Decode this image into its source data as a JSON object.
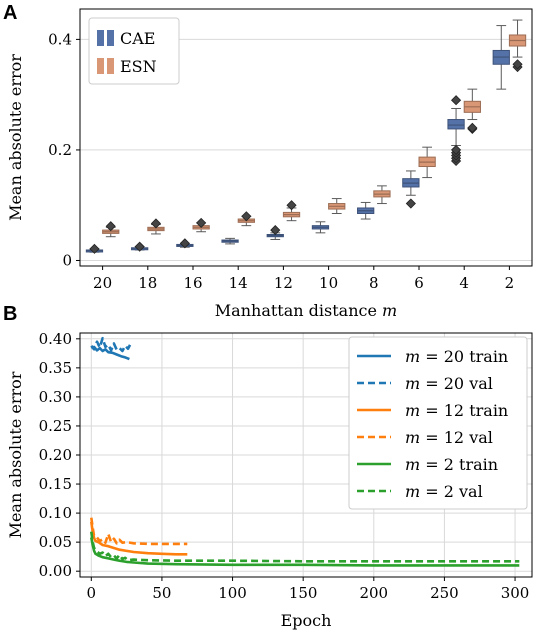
{
  "chart_data": [
    {
      "panel": "A",
      "type": "box",
      "categories": [
        "20",
        "18",
        "16",
        "14",
        "12",
        "10",
        "8",
        "6",
        "4",
        "2"
      ],
      "xlabel": "Manhattan distance ",
      "xlabel_italic": "m",
      "ylabel": "Mean absolute error",
      "ylim": [
        -0.01,
        0.455
      ],
      "yticks": [
        0,
        0.2,
        0.4
      ],
      "yticklabels": [
        "0",
        "0.2",
        "0.4"
      ],
      "grid": "horizontal",
      "legend_position": "top-left",
      "series": [
        {
          "name": "CAE",
          "color": "#5572a8",
          "boxes": [
            {
              "q1": 0.017,
              "median": 0.018,
              "q3": 0.019,
              "lo": 0.015,
              "hi": 0.021,
              "outliers": [
                0.021
              ]
            },
            {
              "q1": 0.021,
              "median": 0.022,
              "q3": 0.023,
              "lo": 0.019,
              "hi": 0.025,
              "outliers": [
                0.025
              ]
            },
            {
              "q1": 0.026,
              "median": 0.027,
              "q3": 0.029,
              "lo": 0.024,
              "hi": 0.031,
              "outliers": [
                0.031
              ]
            },
            {
              "q1": 0.033,
              "median": 0.035,
              "q3": 0.037,
              "lo": 0.03,
              "hi": 0.04,
              "outliers": []
            },
            {
              "q1": 0.043,
              "median": 0.045,
              "q3": 0.047,
              "lo": 0.038,
              "hi": 0.05,
              "outliers": [
                0.055
              ]
            },
            {
              "q1": 0.057,
              "median": 0.06,
              "q3": 0.063,
              "lo": 0.05,
              "hi": 0.07,
              "outliers": []
            },
            {
              "q1": 0.085,
              "median": 0.09,
              "q3": 0.095,
              "lo": 0.075,
              "hi": 0.105,
              "outliers": []
            },
            {
              "q1": 0.133,
              "median": 0.14,
              "q3": 0.148,
              "lo": 0.118,
              "hi": 0.162,
              "outliers": [
                0.103
              ]
            },
            {
              "q1": 0.238,
              "median": 0.245,
              "q3": 0.255,
              "lo": 0.208,
              "hi": 0.275,
              "outliers": [
                0.18,
                0.185,
                0.19,
                0.195,
                0.2,
                0.29
              ]
            },
            {
              "q1": 0.355,
              "median": 0.368,
              "q3": 0.38,
              "lo": 0.31,
              "hi": 0.425,
              "outliers": []
            }
          ]
        },
        {
          "name": "ESN",
          "color": "#d99775",
          "boxes": [
            {
              "q1": 0.049,
              "median": 0.052,
              "q3": 0.055,
              "lo": 0.043,
              "hi": 0.06,
              "outliers": [
                0.062
              ]
            },
            {
              "q1": 0.054,
              "median": 0.057,
              "q3": 0.06,
              "lo": 0.048,
              "hi": 0.065,
              "outliers": [
                0.067
              ]
            },
            {
              "q1": 0.057,
              "median": 0.06,
              "q3": 0.063,
              "lo": 0.052,
              "hi": 0.068,
              "outliers": [
                0.068
              ]
            },
            {
              "q1": 0.069,
              "median": 0.072,
              "q3": 0.075,
              "lo": 0.063,
              "hi": 0.08,
              "outliers": [
                0.08
              ]
            },
            {
              "q1": 0.079,
              "median": 0.083,
              "q3": 0.087,
              "lo": 0.072,
              "hi": 0.095,
              "outliers": [
                0.1
              ]
            },
            {
              "q1": 0.093,
              "median": 0.098,
              "q3": 0.103,
              "lo": 0.085,
              "hi": 0.112,
              "outliers": []
            },
            {
              "q1": 0.115,
              "median": 0.12,
              "q3": 0.126,
              "lo": 0.103,
              "hi": 0.135,
              "outliers": []
            },
            {
              "q1": 0.17,
              "median": 0.178,
              "q3": 0.187,
              "lo": 0.15,
              "hi": 0.205,
              "outliers": []
            },
            {
              "q1": 0.268,
              "median": 0.278,
              "q3": 0.288,
              "lo": 0.255,
              "hi": 0.31,
              "outliers": [
                0.238,
                0.24
              ]
            },
            {
              "q1": 0.388,
              "median": 0.398,
              "q3": 0.408,
              "lo": 0.368,
              "hi": 0.435,
              "outliers": [
                0.35,
                0.355
              ]
            }
          ]
        }
      ]
    },
    {
      "panel": "B",
      "type": "line",
      "xlabel": "Epoch",
      "ylabel": "Mean absolute error",
      "xlim": [
        -8,
        312
      ],
      "ylim": [
        -0.01,
        0.41
      ],
      "xticks": [
        0,
        50,
        100,
        150,
        200,
        250,
        300
      ],
      "yticks": [
        0,
        0.05,
        0.1,
        0.15,
        0.2,
        0.25,
        0.3,
        0.35,
        0.4
      ],
      "yticklabels": [
        "0.00",
        "0.05",
        "0.10",
        "0.15",
        "0.20",
        "0.25",
        "0.30",
        "0.35",
        "0.40"
      ],
      "grid": "both",
      "legend_position": "top-right",
      "series": [
        {
          "name": "𝑚 = 20 train",
          "color": "#1f77b4",
          "style": "solid",
          "x": [
            0,
            2,
            4,
            6,
            8,
            10,
            12,
            15,
            18,
            21,
            24,
            27
          ],
          "y": [
            0.384,
            0.386,
            0.38,
            0.384,
            0.379,
            0.382,
            0.377,
            0.376,
            0.373,
            0.37,
            0.368,
            0.365
          ]
        },
        {
          "name": "𝑚 = 20 val",
          "color": "#1f77b4",
          "style": "dashed",
          "x": [
            0,
            2,
            4,
            6,
            8,
            10,
            12,
            14,
            16,
            18,
            20,
            22,
            24,
            26,
            28
          ],
          "y": [
            0.388,
            0.382,
            0.395,
            0.385,
            0.401,
            0.386,
            0.39,
            0.38,
            0.392,
            0.381,
            0.384,
            0.379,
            0.388,
            0.383,
            0.392
          ]
        },
        {
          "name": "𝑚 = 12 train",
          "color": "#ff7f0e",
          "style": "solid",
          "x": [
            0,
            1,
            2,
            3,
            5,
            8,
            12,
            16,
            20,
            25,
            30,
            40,
            50,
            60,
            68
          ],
          "y": [
            0.085,
            0.068,
            0.057,
            0.052,
            0.05,
            0.045,
            0.043,
            0.04,
            0.037,
            0.035,
            0.033,
            0.031,
            0.03,
            0.029,
            0.029
          ]
        },
        {
          "name": "𝑚 = 12 val",
          "color": "#ff7f0e",
          "style": "dashed",
          "x": [
            0,
            1,
            2,
            4,
            6,
            8,
            10,
            12,
            14,
            16,
            18,
            20,
            22,
            25,
            30,
            40,
            50,
            60,
            68
          ],
          "y": [
            0.092,
            0.075,
            0.06,
            0.058,
            0.052,
            0.055,
            0.049,
            0.064,
            0.05,
            0.056,
            0.048,
            0.054,
            0.049,
            0.05,
            0.048,
            0.047,
            0.047,
            0.047,
            0.047
          ]
        },
        {
          "name": "𝑚 = 2 train",
          "color": "#2ca02c",
          "style": "solid",
          "x": [
            0,
            1,
            2,
            3,
            5,
            8,
            12,
            16,
            20,
            25,
            30,
            40,
            60,
            100,
            150,
            200,
            250,
            303
          ],
          "y": [
            0.058,
            0.045,
            0.035,
            0.03,
            0.027,
            0.024,
            0.022,
            0.02,
            0.018,
            0.016,
            0.015,
            0.013,
            0.012,
            0.011,
            0.011,
            0.01,
            0.01,
            0.01
          ]
        },
        {
          "name": "𝑚 = 2 val",
          "color": "#2ca02c",
          "style": "dashed",
          "x": [
            0,
            1,
            2,
            4,
            6,
            8,
            10,
            12,
            14,
            16,
            18,
            20,
            22,
            24,
            26,
            30,
            40,
            60,
            100,
            150,
            200,
            250,
            303
          ],
          "y": [
            0.068,
            0.05,
            0.04,
            0.034,
            0.03,
            0.032,
            0.026,
            0.03,
            0.024,
            0.027,
            0.022,
            0.028,
            0.021,
            0.023,
            0.019,
            0.02,
            0.019,
            0.018,
            0.018,
            0.017,
            0.017,
            0.017,
            0.017
          ]
        }
      ]
    }
  ]
}
